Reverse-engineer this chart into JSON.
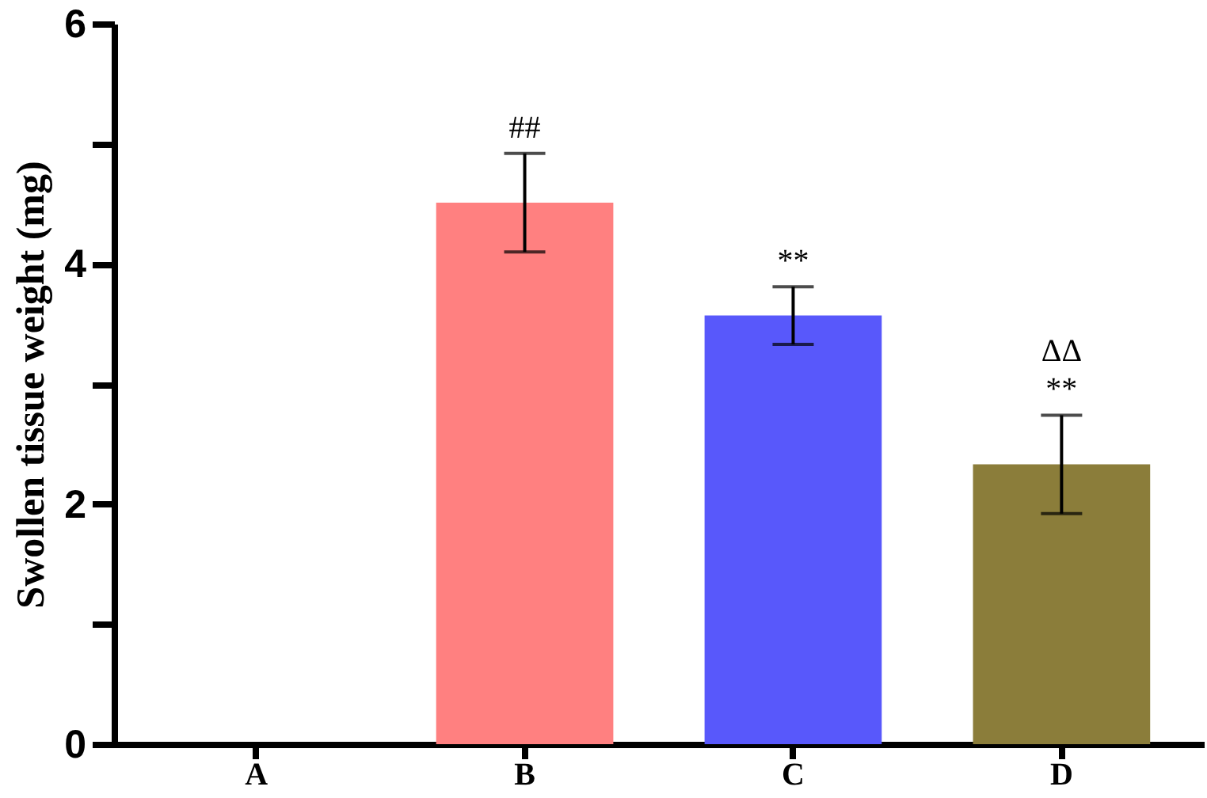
{
  "chart_data": {
    "type": "bar",
    "ylabel": "Swollen tissue weight (mg)",
    "categories": [
      "A",
      "B",
      "C",
      "D"
    ],
    "values": [
      0,
      4.51,
      3.57,
      2.33
    ],
    "errors": [
      null,
      0.41,
      0.24,
      0.41
    ],
    "colors": [
      "#ff8080",
      "#ff8080",
      "#5858fb",
      "#8b7d3a"
    ],
    "ylim": [
      0,
      6
    ],
    "yticks": [
      0,
      {
        "value": 1,
        "label": null
      },
      2,
      {
        "value": 3,
        "label": null
      },
      4,
      {
        "value": 5,
        "label": null
      },
      6
    ],
    "annotations": [
      {
        "text": "##",
        "x": "B",
        "y": 4.51
      },
      {
        "text": "**",
        "x": "C",
        "y": 3.57
      },
      {
        "text": "ΔΔ\n**",
        "x": "D",
        "y": 2.33
      }
    ]
  }
}
